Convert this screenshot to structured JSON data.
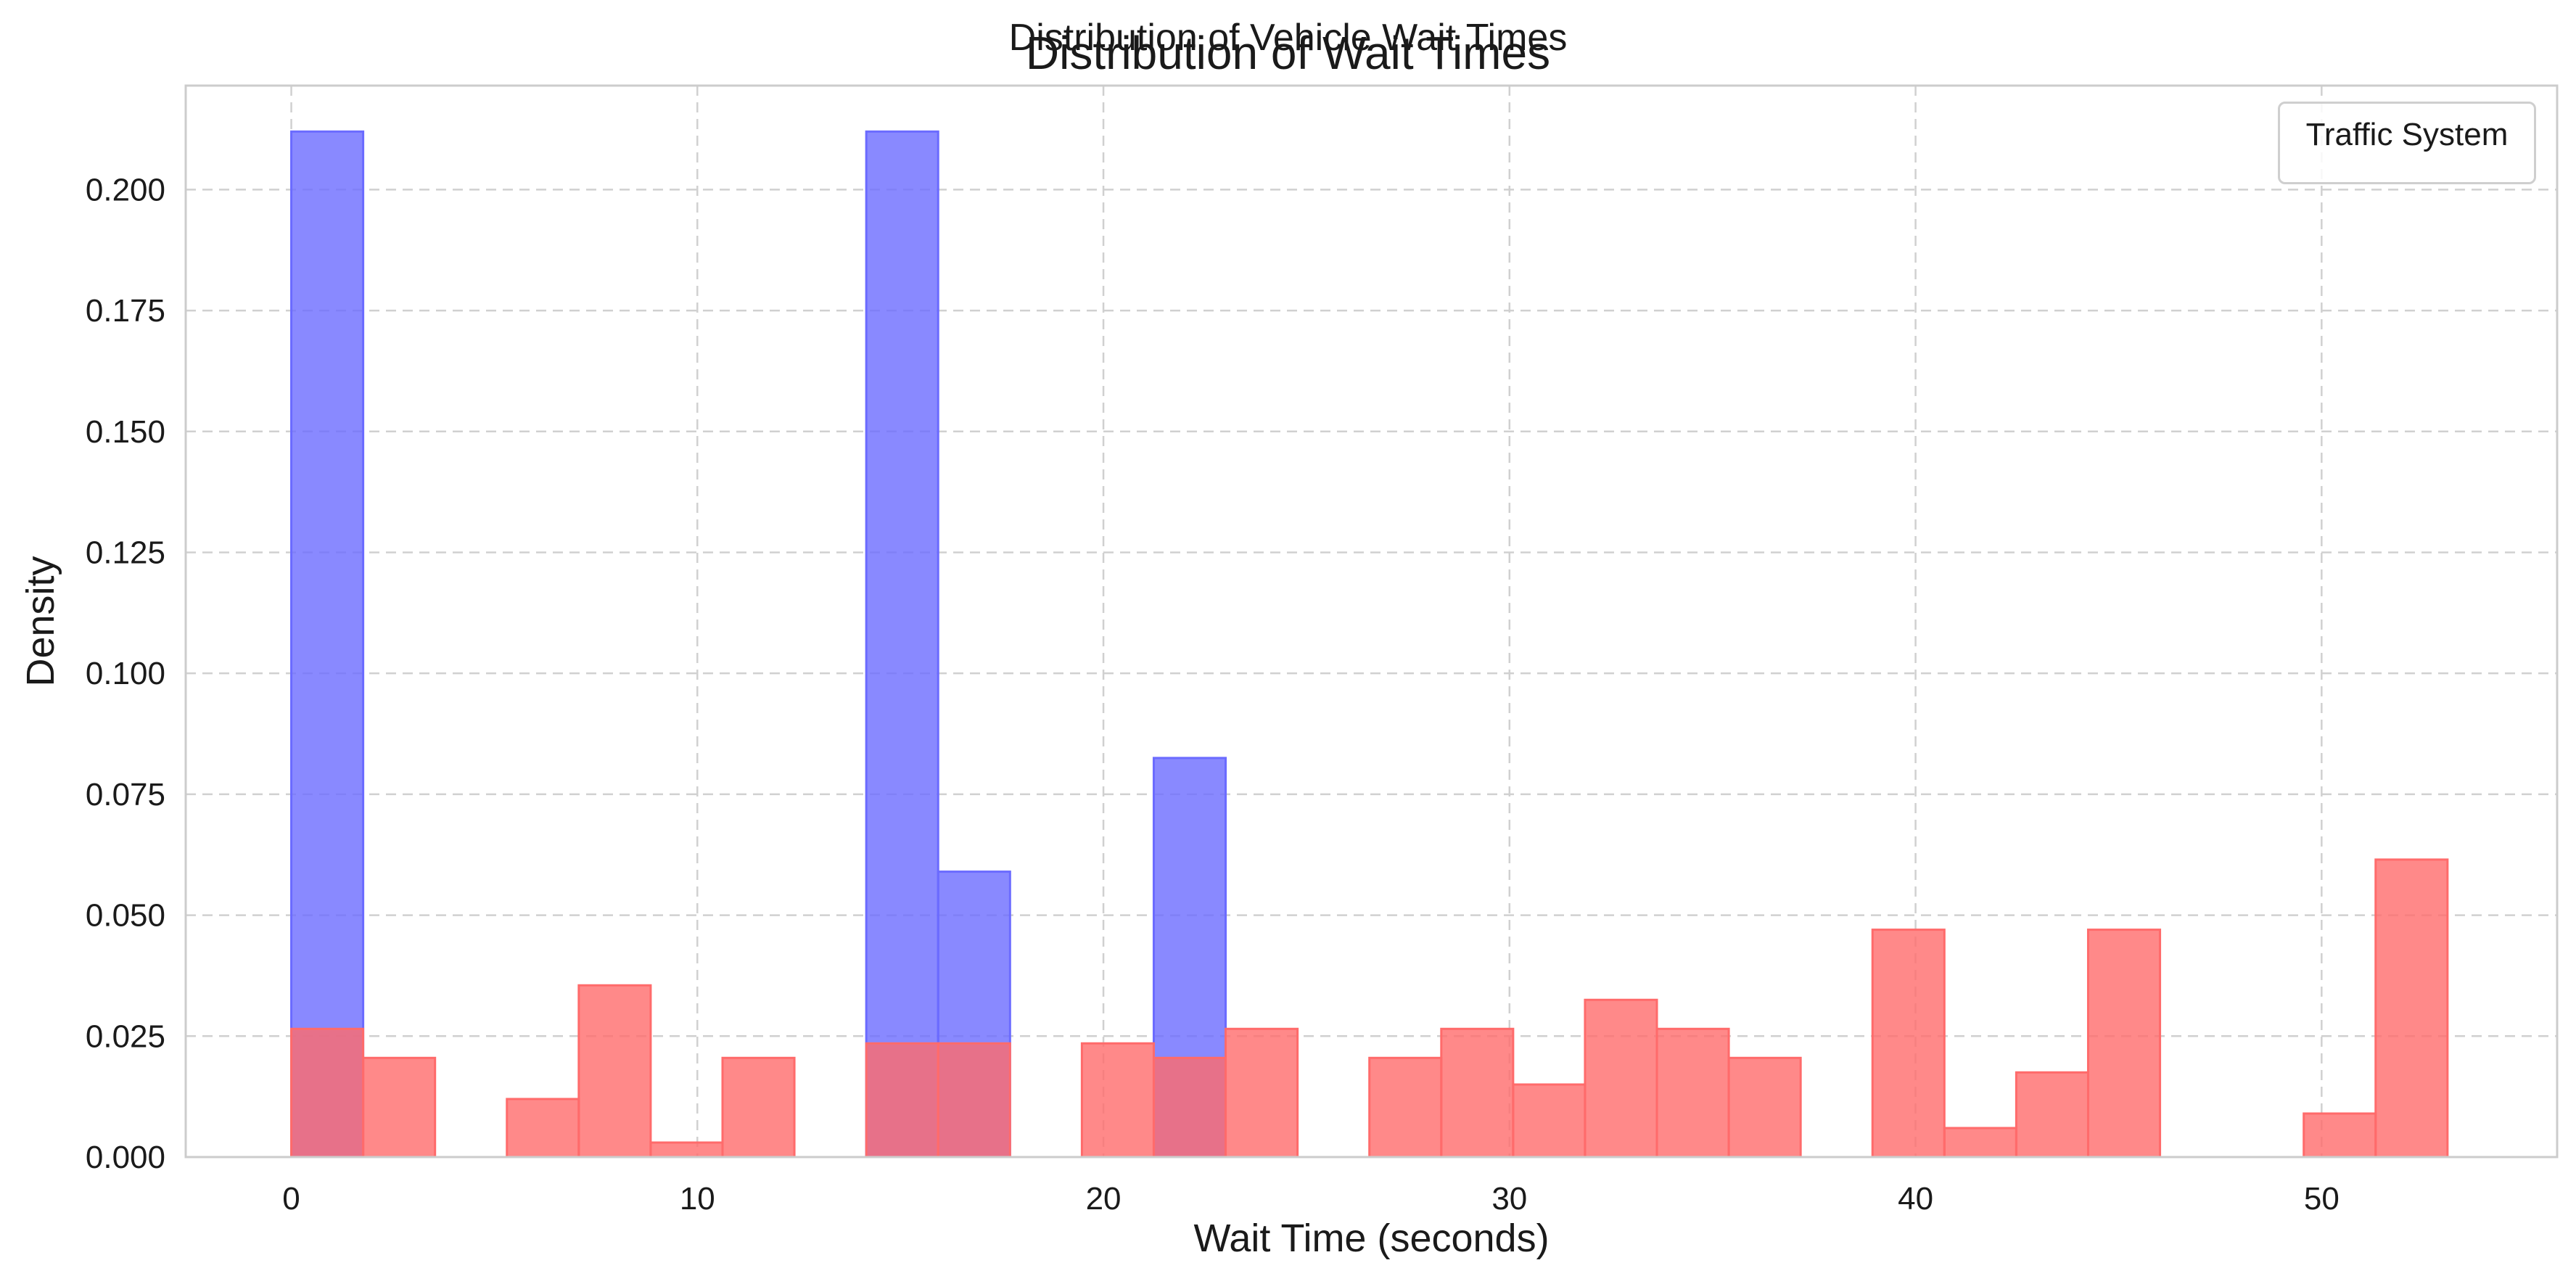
{
  "figure": {
    "suptitle": "Distribution of Vehicle Wait Times",
    "title": "Distribution of Wait Times"
  },
  "legend": {
    "title": "Traffic System",
    "location": "upper right"
  },
  "colors": {
    "series_a": "#6b6bff",
    "series_b": "#ff6b6b",
    "grid": "#d0d0d0",
    "spine": "#cccccc"
  },
  "chart_data": {
    "type": "histogram",
    "title": "Distribution of Wait Times",
    "suptitle": "Distribution of Vehicle Wait Times",
    "xlabel": "Wait Time (seconds)",
    "ylabel": "Density",
    "xlim": [
      -2.6,
      55.8
    ],
    "ylim": [
      0,
      0.2215
    ],
    "xticks": [
      0,
      10,
      20,
      30,
      40,
      50
    ],
    "yticks": [
      "0.000",
      "0.025",
      "0.050",
      "0.075",
      "0.100",
      "0.125",
      "0.150",
      "0.175",
      "0.200"
    ],
    "grid": true,
    "legend_title": "Traffic System",
    "legend_location": "upper right",
    "bins": [
      0,
      1.77,
      3.54,
      5.31,
      7.08,
      8.85,
      10.62,
      12.39,
      14.16,
      15.93,
      17.7,
      19.47,
      21.24,
      23.01,
      24.78,
      26.55,
      28.32,
      30.09,
      31.86,
      33.63,
      35.4,
      37.17,
      38.94,
      40.71,
      42.48,
      44.25,
      46.02,
      47.79,
      49.56,
      51.33,
      53.1
    ],
    "series": [
      {
        "color": "#6b6bff",
        "densities": [
          0.212,
          0,
          0,
          0,
          0,
          0,
          0,
          0,
          0.212,
          0.059,
          0,
          0,
          0.0825,
          0,
          0,
          0,
          0,
          0,
          0,
          0,
          0,
          0,
          0,
          0,
          0,
          0,
          0,
          0,
          0,
          0
        ]
      },
      {
        "color": "#ff6b6b",
        "densities": [
          0.0265,
          0.0205,
          0,
          0.012,
          0.0355,
          0.003,
          0.0205,
          0,
          0.0235,
          0.0235,
          0,
          0.0235,
          0.0205,
          0.0265,
          0,
          0.0205,
          0.0265,
          0.015,
          0.0325,
          0.0265,
          0.0205,
          0,
          0.047,
          0.006,
          0.0175,
          0.047,
          0,
          0,
          0.009,
          0.0615
        ]
      }
    ]
  }
}
